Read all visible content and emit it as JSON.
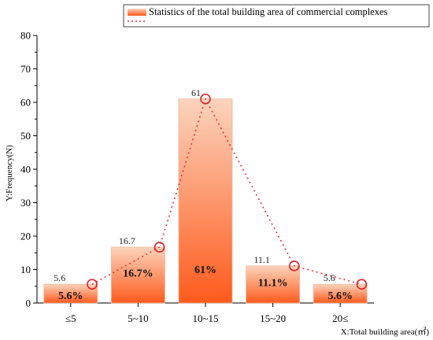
{
  "chart_data": {
    "type": "bar",
    "categories": [
      "≤5",
      "5~10",
      "10~15",
      "15~20",
      "20≤"
    ],
    "values": [
      5.6,
      16.7,
      61,
      11.1,
      5.6
    ],
    "value_labels": [
      "5.6",
      "16.7",
      "61",
      "11.1",
      "5.6"
    ],
    "percent_labels": [
      "5.6%",
      "16.7%",
      "61%",
      "11.1%",
      "5.6%"
    ],
    "ylim": [
      0,
      80
    ],
    "yticks": [
      0,
      10,
      20,
      30,
      40,
      50,
      60,
      70,
      80
    ],
    "xlabel": "X:Total building area(㎡)",
    "ylabel": "Y:Frequency(N)",
    "legend": {
      "label": "Statistics of the total building area of commercial complexes",
      "placement": "top-right"
    },
    "overlay_line": {
      "style": "dotted",
      "markers": "open-circle",
      "values": [
        5.6,
        16.7,
        61,
        11.1,
        5.6
      ]
    },
    "colors": {
      "bar_top": "#fbd4bd",
      "bar_bottom": "#ff5a1c",
      "line": "#e8353a",
      "marker": "#e0202a"
    }
  }
}
